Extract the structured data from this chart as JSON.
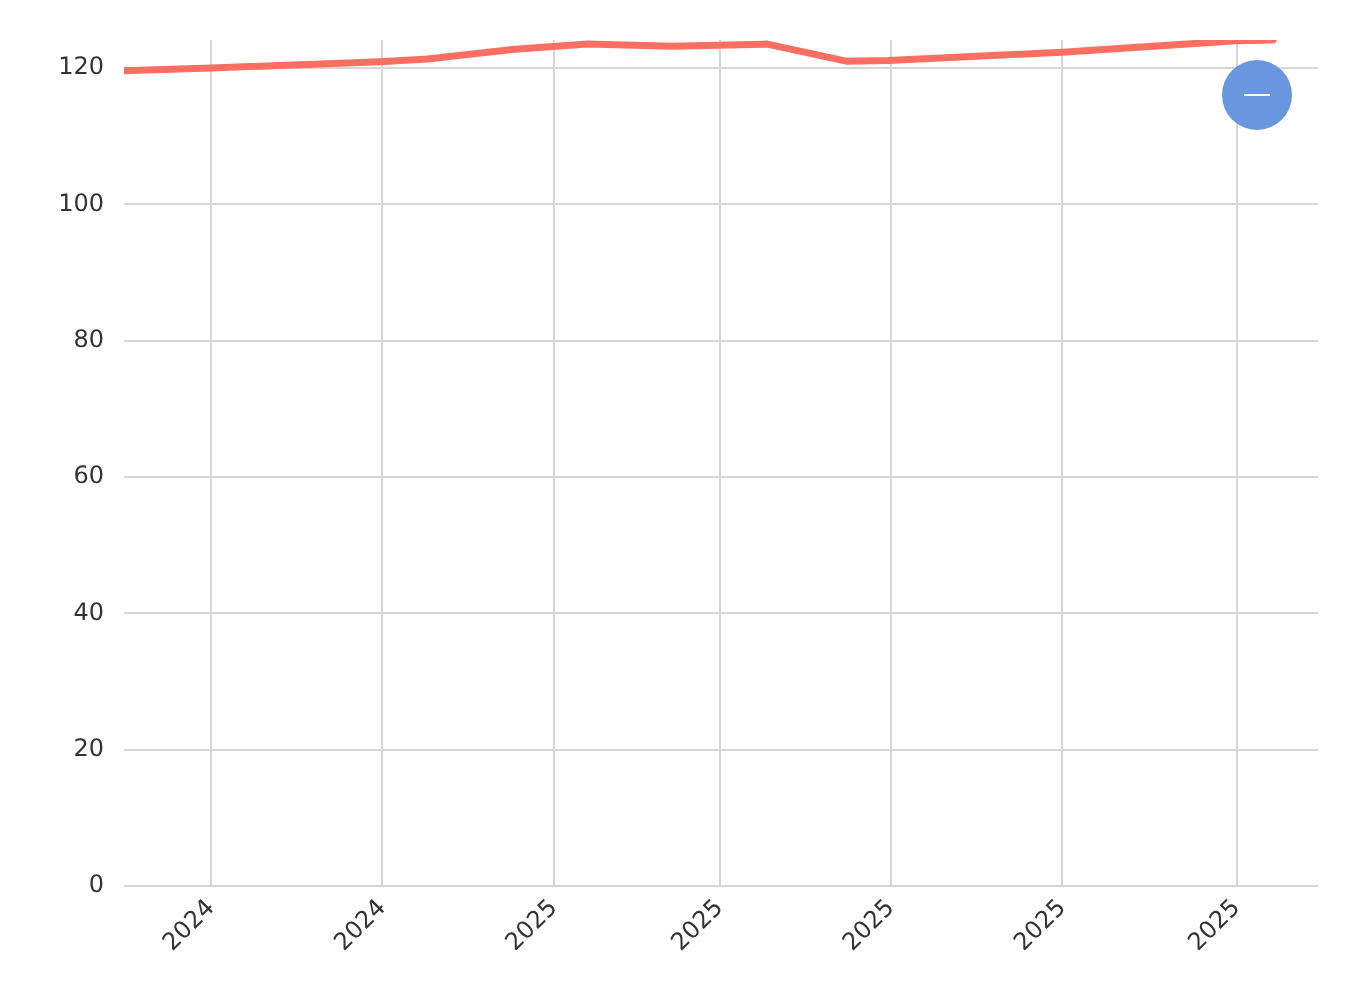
{
  "chart_data": {
    "type": "line",
    "x": [
      "2024-08-01",
      "2024-09-01",
      "2024-10-31",
      "2024-11-17",
      "2024-12-17",
      "2025-01-13",
      "2025-02-12",
      "2025-03-18",
      "2025-04-15",
      "2025-04-30",
      "2025-07-01",
      "2025-09-01",
      "2025-09-14"
    ],
    "values": [
      119.6,
      120.0,
      120.9,
      121.3,
      122.7,
      123.5,
      123.2,
      123.5,
      121.0,
      121.1,
      122.3,
      124.0,
      124.1
    ],
    "color": "#ff6f61",
    "xlim": [
      "2024-08-01",
      "2025-09-30"
    ],
    "xticks": [
      {
        "value": "2024-09-01",
        "label": "2024"
      },
      {
        "value": "2024-11-01",
        "label": "2024"
      },
      {
        "value": "2025-01-01",
        "label": "2025"
      },
      {
        "value": "2025-03-01",
        "label": "2025"
      },
      {
        "value": "2025-05-01",
        "label": "2025"
      },
      {
        "value": "2025-07-01",
        "label": "2025"
      },
      {
        "value": "2025-09-01",
        "label": "2025"
      }
    ],
    "ylim": [
      0,
      124.1
    ],
    "yticks": [
      0,
      20,
      40,
      60,
      80,
      100,
      120
    ],
    "grid": true,
    "marker": "none",
    "line_style": "solid"
  }
}
